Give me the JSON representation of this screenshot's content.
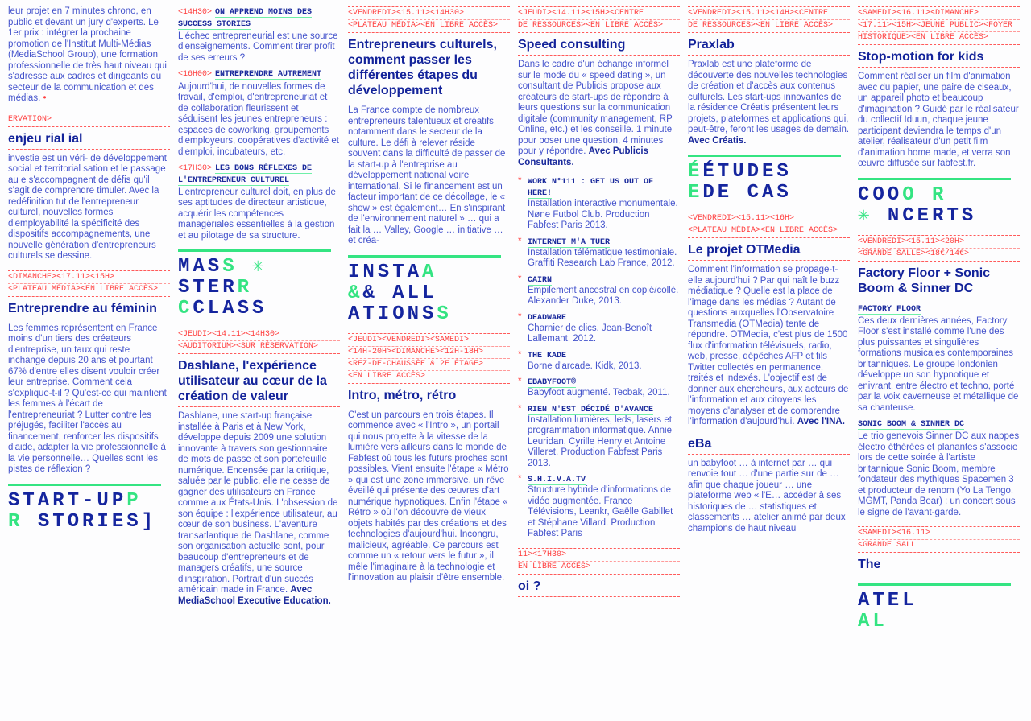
{
  "colors": {
    "background": "#d3d0ce",
    "paper": "#fdfdfe",
    "blue": "#15259e",
    "text": "#4453cc",
    "red": "#ff3d3d",
    "green": "#34e482"
  },
  "intro_left": {
    "text": "leur projet en 7 minutes chrono, en public et devant un jury d'experts. Le 1er prix : intégrer la prochaine promotion de l'Institut Multi-Médias (MediaSchool Group), une formation professionnelle de très haut niveau qui s'adresse aux cadres et dirigeants du secteur de la communication et des médias."
  },
  "schedule": [
    {
      "time": "<14H30>",
      "title": "On apprend moins des success stories",
      "text": "L'échec entrepreneurial est une source d'enseignements. Comment tirer profit de ses erreurs ?"
    },
    {
      "time": "<16H00>",
      "title": "Entreprendre autrement",
      "text": "Aujourd'hui, de nouvelles formes de travail, d'emploi, d'entrepreneuriat et de collaboration fleurissent et séduisent les jeunes entrepreneurs : espaces de coworking, groupements d'employeurs, coopératives d'activité et d'emploi, incubateurs, etc."
    },
    {
      "time": "<17H30>",
      "title": "Les bons réflexes de l'entrepreneur culturel",
      "text": "L'entrepreneur culturel doit, en plus de ses aptitudes de directeur artistique, acquérir les compétences managériales essentielles à la gestion et au pilotage de sa structure."
    }
  ],
  "enjeu": {
    "tag": "ERVATION>",
    "title": "enjeu rial ial",
    "text": "investie est un véri- de développement social et territorial sation et le passage au e s'accompagnent de défis qu'il s'agit de comprendre timuler. Avec la redéfinition tut de l'entrepreneur culturel, nouvelles formes d'employabilité la spécificité des dispositifs accompagnements, une nouvelle génération d'entrepreneurs culturels se dessine."
  },
  "feminin": {
    "tag1": "<DIMANCHE><17.11><15H>",
    "tag2": "<PLATEAU MÉDIA><EN LIBRE ACCÈS>",
    "title": "Entreprendre au féminin",
    "text": "Les femmes représentent en France moins d'un tiers des créateurs d'entreprise, un taux qui reste inchangé depuis 20 ans et pourtant 67% d'entre elles disent vouloir créer leur entreprise. Comment cela s'explique-t-il ? Qu'est-ce qui maintient les femmes à l'écart de l'entrepreneuriat ? Lutter contre les préjugés, faciliter l'accès au financement, renforcer les dispositifs d'aide, adapter la vie professionnelle à la vie personnelle… Quelles sont les pistes de réflexion ?"
  },
  "masterclass": {
    "l1": "MAS",
    "l2": "STER",
    "l3": "CLASS",
    "g1": "S",
    "g2": "R",
    "g3": "C"
  },
  "dashlane": {
    "tag1": "<JEUDI><14.11><14H30>",
    "tag2": "<AUDITORIUM><SUR RÉSERVATION>",
    "title": "Dashlane, l'expérience utilisateur au cœur de la création de valeur",
    "text": "Dashlane, une start-up française installée à Paris et à New York, développe depuis 2009 une solution innovante à travers son gestionnaire de mots de passe et son portefeuille numérique. Encensée par la critique, saluée par le public, elle ne cesse de gagner des utilisateurs en France comme aux États-Unis. L'obsession de son équipe : l'expérience utilisateur, au cœur de son business. L'aventure transatlantique de Dashlane, comme son organisation actuelle sont, pour beaucoup d'entrepreneurs et de managers créatifs, une source d'inspiration. Portrait d'un succès américain made in France.",
    "credit": "Avec MediaSchool Executive Education."
  },
  "culturels": {
    "tag1": "<VENDREDI><15.11><14H30>",
    "tag2": "<PLATEAU MÉDIA><EN LIBRE ACCÈS>",
    "title": "Entrepreneurs culturels, comment passer les différentes étapes du développement",
    "text": "La France compte de nombreux entrepreneurs talentueux et créatifs notamment dans le secteur de la culture. Le défi à relever réside souvent dans la difficulté de passer de la start-up à l'entreprise au développement national voire international. Si le financement est un facteur important de ce décollage, le « show » est également… En s'inspirant de l'environnement naturel » … qui a fait la … Valley, Google … initiative … et créa-"
  },
  "startup": {
    "l1": "START-UP",
    "l2": "STORIES]",
    "g1": "P",
    "g2": "R"
  },
  "installations": {
    "l1": "INSTA",
    "l2": "& ALL",
    "l3": "ATIONS",
    "g1": "A",
    "g2": "&",
    "g3": "S",
    "tag1": "<JEUDI><VENDREDI><SAMEDI>",
    "tag2": "<14H-20H><DIMANCHE><12H-18H>",
    "tag3": "<REZ-DE-CHAUSSÉE & 2e ÉTAGE>",
    "tag4": "<EN LIBRE ACCÈS>",
    "title": "Intro, métro, rétro",
    "text": "C'est un parcours en trois étapes. Il commence avec « l'Intro », un portail qui nous projette à la vitesse de la lumière vers ailleurs dans le monde de Fabfest où tous les futurs proches sont possibles. Vient ensuite l'étape « Métro » qui est une zone immersive, un rêve éveillé qui présente des œuvres d'art numérique hypnotiques. Enfin l'étape « Rétro » où l'on découvre de vieux objets habités par des créations et des technologies d'aujourd'hui. Incongru, malicieux, agréable. Ce parcours est comme un « retour vers le futur », il mêle l'imaginaire à la technologie et l'innovation au plaisir d'être ensemble."
  },
  "speed": {
    "tag1": "<JEUDI><14.11><15H><CENTRE",
    "tag2": "DE RESSOURCES><EN LIBRE ACCÈS>",
    "title": "Speed consulting",
    "text": "Dans le cadre d'un échange informel sur le mode du « speed dating », un consultant de Publicis propose aux créateurs de start-ups de répondre à leurs questions sur la communication digitale (community management, RP Online, etc.) et les conseille. 1 minute pour poser une question, 4 minutes pour y répondre.",
    "credit": "Avec Publicis Consultants."
  },
  "praxlab": {
    "tag1": "<VENDREDI><15.11><14H><CENTRE",
    "tag2": "DE RESSOURCES><EN LIBRE ACCÈS>",
    "title": "Praxlab",
    "text": "Praxlab est une plateforme de découverte des nouvelles technologies de création et d'accès aux contenus culturels. Les start-ups innovantes de la résidence Créatis présentent leurs projets, plateformes et applications qui, peut-être, feront les usages de demain.",
    "credit": "Avec Créatis."
  },
  "works": [
    {
      "title": "Work n°111 : Get us out of here!",
      "text": "Installation interactive monumentale. Nøne Futbol Club. Production Fabfest Paris 2013."
    },
    {
      "title": "Internet m'a tuer",
      "text": "Installation télématique testimoniale. Graffiti Research Lab France, 2012."
    },
    {
      "title": "Cairn",
      "text": "Empilement ancestral en copié/collé. Alexander Duke, 2013."
    },
    {
      "title": "Deadware",
      "text": "Charnier de clics. Jean-Benoît Lallemant, 2012."
    },
    {
      "title": "The Kade",
      "text": "Borne d'arcade. Kidk, 2013."
    },
    {
      "title": "eBabyfoot®",
      "text": "Babyfoot augmenté. Tecbak, 2011."
    },
    {
      "title": "Rien n'est décidé d'avance",
      "text": "Installation lumières, leds, lasers et programmation informatique. Annie Leuridan, Cyrille Henry et Antoine Villeret. Production Fabfest Paris 2013."
    },
    {
      "title": "S.H.I.V.A.TV",
      "text": "Structure hybride d'informations de vidéo augmentée. France Télévisions, Leankr, Gaëlle Gabillet et Stéphane Villard. Production Fabfest Paris"
    }
  ],
  "etudes": {
    "l1": "ÉTUDES",
    "l2": "DE CAS",
    "g1": "É",
    "g2": "E",
    "tag1": "<VENDREDI><15.11><16H>",
    "tag2": "<PLATEAU MÉDIA><EN LIBRE ACCÈS>",
    "title": "Le projet OTMedia",
    "text": "Comment l'information se propage-t-elle aujourd'hui ? Par qui naît le buzz médiatique ? Quelle est la place de l'image dans les médias ? Autant de questions auxquelles l'Observatoire Transmedia (OTMedia) tente de répondre. OTMedia, c'est plus de 1500 flux d'information télévisuels, radio, web, presse, dépêches AFP et fils Twitter collectés en permanence, traités et indexés. L'objectif est de donner aux chercheurs, aux acteurs de l'information et aux citoyens les moyens d'analyser et de comprendre l'information d'aujourd'hui.",
    "credit": "Avec l'INA."
  },
  "ebabyfoot": {
    "title": "eBa",
    "text": "un babyfoot … à internet par … qui renvoie tout … d'une partie sur de … afin que chaque joueur … une plateforme web « l'E… accéder à ses historiques de … statistiques et classements … atelier animé par deux champions de haut niveau"
  },
  "stopmotion": {
    "tag1": "<SAMEDI><16.11><DIMANCHE>",
    "tag2": "<17.11><15H><JEUNE PUBLIC><FOYER",
    "tag3": "HISTORIQUE><EN LIBRE ACCÈS>",
    "title": "Stop-motion for kids",
    "text": "Comment réaliser un film d'animation avec du papier, une paire de ciseaux, un appareil photo et beaucoup d'imagination ? Guidé par le réalisateur du collectif Iduun, chaque jeune participant deviendra le temps d'un atelier, réalisateur d'un petit film d'animation home made, et verra son œuvre diffusée sur fabfest.fr."
  },
  "concerts": {
    "l1": "COO",
    "l2": "NCERTS",
    "g1": "O",
    "g2": "R",
    "tag1": "<VENDREDI><15.11><20H>",
    "tag2": "<GRANDE SALLE><18€/14€>",
    "title": "Factory Floor + Sonic Boom & Sinner DC",
    "sub1": "Factory Floor",
    "text1": "Ces deux dernières années, Factory Floor s'est installé comme l'une des plus puissantes et singulières formations musicales contemporaines britanniques. Le groupe londonien développe un son hypnotique et enivrant, entre électro et techno, porté par la voix caverneuse et métallique de sa chanteuse.",
    "sub2": "Sonic Boom & Sinner DC",
    "text2": "Le trio genevois Sinner DC aux nappes électro éthérées et planantes s'associe lors de cette soirée à l'artiste britannique Sonic Boom, membre fondateur des mythiques Spacemen 3 et producteur de renom (Yo La Tengo, MGMT, Panda Bear) : un concert sous le signe de l'avant-garde."
  },
  "the": {
    "tag1": "<SAMEDI><16.11>",
    "tag2": "<GRANDE SALL",
    "title": "The"
  },
  "ateliers": {
    "l1": "ATEL",
    "l2": "AL"
  },
  "bottom": {
    "tag1": "11><17H30>",
    "tag2": "EN LIBRE ACCÈS>",
    "title": "oi ?"
  }
}
